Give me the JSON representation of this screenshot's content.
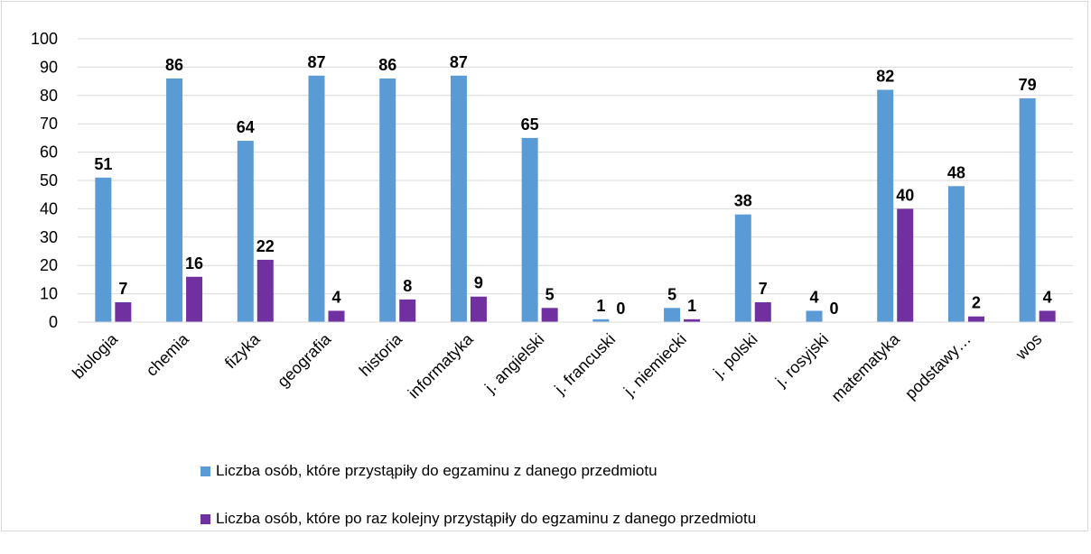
{
  "chart_data": {
    "type": "bar",
    "categories": [
      "biologia",
      "chemia",
      "fizyka",
      "geografia",
      "historia",
      "informatyka",
      "j. angielski",
      "j. francuski",
      "j. niemiecki",
      "j. polski",
      "j. rosyjski",
      "matematyka",
      "podstawy…",
      "wos"
    ],
    "series": [
      {
        "name": "Liczba osób, które przystąpiły do egzaminu z danego przedmiotu",
        "color": "#5b9bd5",
        "values": [
          51,
          86,
          64,
          87,
          86,
          87,
          65,
          1,
          5,
          38,
          4,
          82,
          48,
          79
        ]
      },
      {
        "name": "Liczba osób, które po raz kolejny przystąpiły do egzaminu z danego przedmiotu",
        "color": "#7030a0",
        "values": [
          7,
          16,
          22,
          4,
          8,
          9,
          5,
          0,
          1,
          7,
          0,
          40,
          2,
          4
        ]
      }
    ],
    "yticks": [
      "0",
      "10",
      "20",
      "30",
      "40",
      "50",
      "60",
      "70",
      "80",
      "90",
      "100"
    ],
    "ylim": [
      0,
      100
    ],
    "grid": true,
    "legend_position": "bottom"
  }
}
